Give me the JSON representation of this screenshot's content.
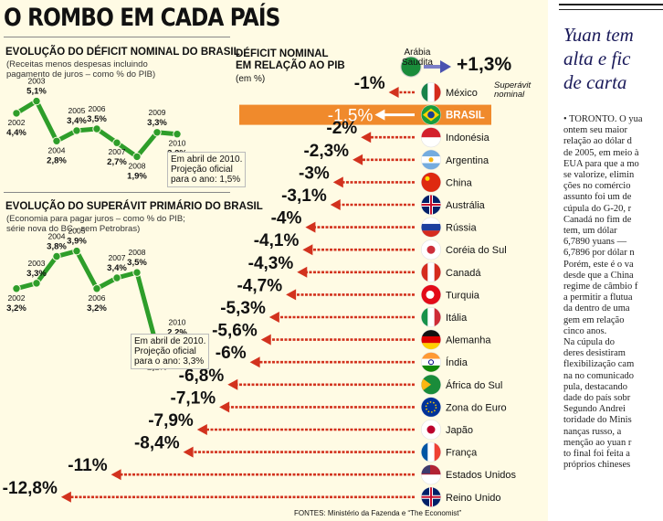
{
  "infographic": {
    "title": "O ROMBO EM CADA PAÍS",
    "sources": "FONTES: Ministério da Fazenda e “The Economist”"
  },
  "chart_data": [
    {
      "type": "line",
      "title": "EVOLUÇÃO DO DÉFICIT NOMINAL DO BRASIL",
      "subtitle": "(Receitas menos despesas incluindo pagamento de juros – como % do PIB)",
      "subtitle_lines": [
        "(Receitas menos despesas incluindo",
        "pagamento de juros – como % do PIB)"
      ],
      "x": [
        "2002",
        "2003",
        "2004",
        "2005",
        "2006",
        "2007",
        "2008",
        "2009",
        "2010"
      ],
      "values": [
        4.4,
        5.1,
        2.8,
        3.4,
        3.5,
        2.7,
        1.9,
        3.3,
        3.2
      ],
      "value_labels": [
        "4,4%",
        "5,1%",
        "2,8%",
        "3,4%",
        "3,5%",
        "2,7%",
        "1,9%",
        "3,3%",
        "3,2%"
      ],
      "ylim": [
        1.5,
        5.5
      ],
      "note_lines": [
        "Em abril de 2010.",
        "Projeção oficial",
        "para o ano: 1,5%"
      ]
    },
    {
      "type": "line",
      "title": "EVOLUÇÃO DO SUPERÁVIT PRIMÁRIO DO BRASIL",
      "subtitle": "(Economia para pagar juros – como % do PIB; série nova do BC - sem Petrobras)",
      "subtitle_lines": [
        "(Economia para pagar juros – como % do PIB;",
        "série nova do BC - sem Petrobras)"
      ],
      "x": [
        "2002",
        "2003",
        "2004",
        "2005",
        "2006",
        "2007",
        "2008",
        "2009",
        "2010"
      ],
      "values": [
        3.2,
        3.3,
        3.8,
        3.9,
        3.2,
        3.4,
        3.5,
        2.1,
        2.2
      ],
      "value_labels": [
        "3,2%",
        "3,3%",
        "3,8%",
        "3,9%",
        "3,2%",
        "3,4%",
        "3,5%",
        "2,1%",
        "2,2%"
      ],
      "ylim": [
        1.8,
        4.2
      ],
      "note_lines": [
        "Em abril de 2010.",
        "Projeção oficial",
        "para o ano: 3,3%"
      ]
    },
    {
      "type": "bar",
      "title": "DÉFICIT NOMINAL EM RELAÇÃO AO PIB",
      "title_lines": [
        "DÉFICIT NOMINAL",
        "EM RELAÇÃO AO PIB"
      ],
      "unit": "(em %)",
      "positive": {
        "country": "Arábia Saudita",
        "country_lines": [
          "Arábia",
          "Saudita"
        ],
        "value": 1.3,
        "label": "+1,3%",
        "note_lines": [
          "Superávit",
          "nominal"
        ]
      },
      "categories": [
        "México",
        "BRASIL",
        "Indonésia",
        "Argentina",
        "China",
        "Austrália",
        "Rússia",
        "Coréia do Sul",
        "Canadá",
        "Turquia",
        "Itália",
        "Alemanha",
        "Índia",
        "África do Sul",
        "Zona do Euro",
        "Japão",
        "França",
        "Estados Unidos",
        "Reino Unido"
      ],
      "values": [
        -1,
        -1.5,
        -2,
        -2.3,
        -3,
        -3.1,
        -4,
        -4.1,
        -4.3,
        -4.7,
        -5.3,
        -5.6,
        -6,
        -6.8,
        -7.1,
        -7.9,
        -8.4,
        -11,
        -12.8
      ],
      "value_labels": [
        "-1%",
        "-1,5%",
        "-2%",
        "-2,3%",
        "-3%",
        "-3,1%",
        "-4%",
        "-4,1%",
        "-4,3%",
        "-4,7%",
        "-5,3%",
        "-5,6%",
        "-6%",
        "-6,8%",
        "-7,1%",
        "-7,9%",
        "-8,4%",
        "-11%",
        "-12,8%"
      ],
      "highlight": "BRASIL",
      "colors": {
        "arrow": "#d2321e",
        "highlight_band": "#f08a2c",
        "line": "#2e9e2a"
      }
    }
  ],
  "article": {
    "headline_lines": [
      "Yuan tem",
      "alta e fic",
      "de carta"
    ],
    "body_lines": [
      "• TORONTO. O yua",
      "ontem seu maior",
      "relação ao dólar d",
      "de 2005, em meio à",
      "EUA para que a mo",
      "se valorize, elimin",
      "ções no comércio",
      "assunto foi um de",
      "cúpula do G-20, r",
      "Canadá no fim de",
      "tem, um dólar",
      "6,7890 yuans —",
      "6,7896 por dólar n",
      "Porém, este é o va",
      "desde que a China",
      "regime de câmbio f",
      "a permitir a flutua",
      "da dentro de uma",
      "gem em relação",
      "cinco anos.",
      "    Na cúpula do",
      "deres desistiram",
      "flexibilização cam",
      "na no comunicado",
      "pula, destacando",
      "dade do país sobr",
      "Segundo Andrei",
      "toridade do Minis",
      "nanças russo, a",
      "menção ao yuan r",
      "to final foi feita a",
      "próprios chineses"
    ]
  }
}
